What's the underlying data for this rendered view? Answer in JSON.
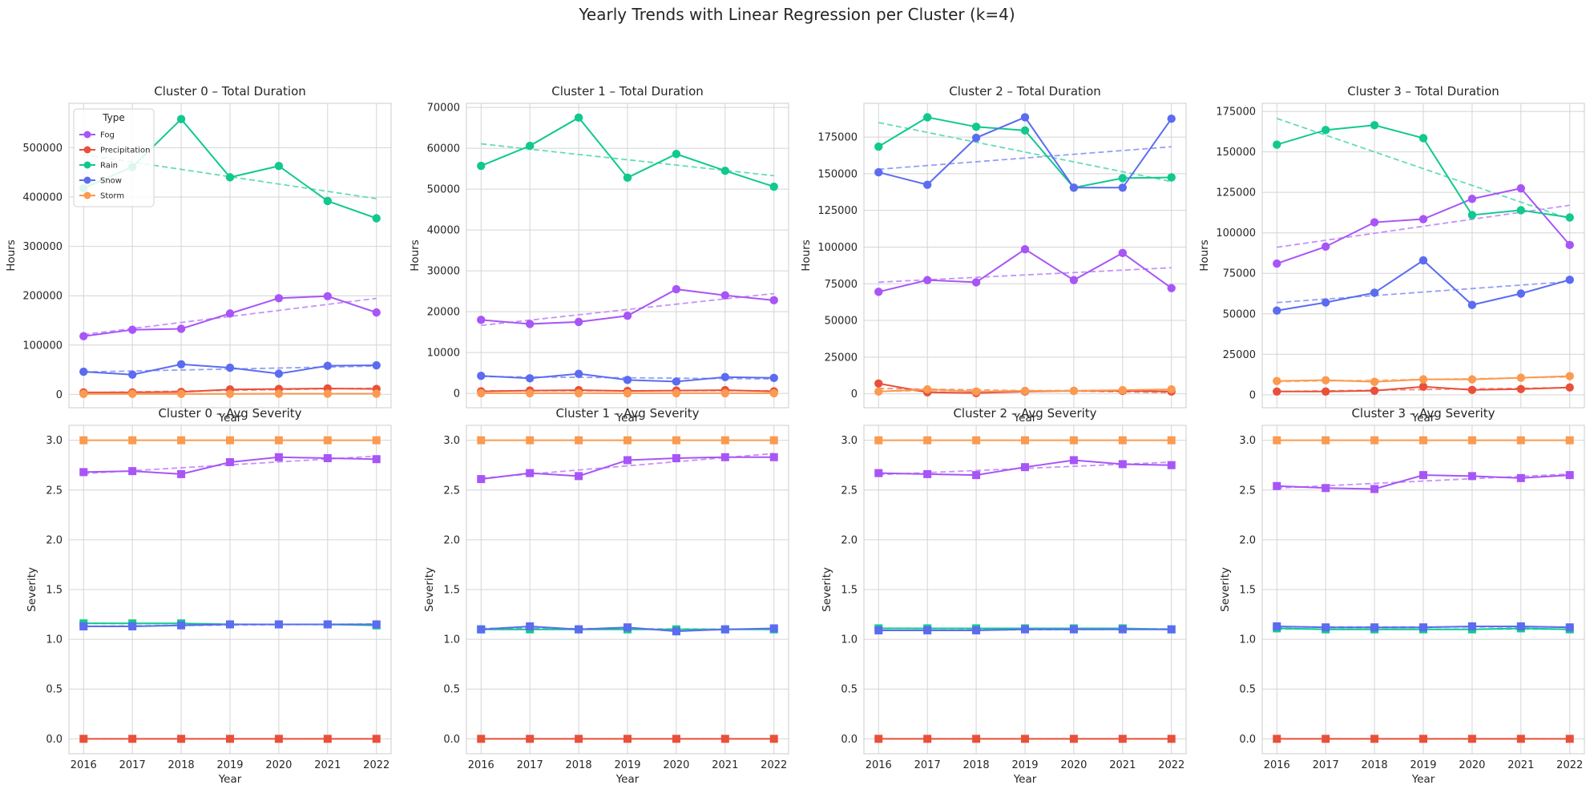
{
  "suptitle": "Yearly Trends with Linear Regression per Cluster (k=4)",
  "legend": {
    "title": "Type",
    "entries": [
      {
        "name": "Fog",
        "color": "#a855f7"
      },
      {
        "name": "Precipitation",
        "color": "#e8503a"
      },
      {
        "name": "Rain",
        "color": "#10c98f"
      },
      {
        "name": "Snow",
        "color": "#5b6cf0"
      },
      {
        "name": "Storm",
        "color": "#fb9a50"
      }
    ]
  },
  "colors": {
    "Fog": "#a855f7",
    "Precipitation": "#e8503a",
    "Rain": "#10c98f",
    "Snow": "#5b6cf0",
    "Storm": "#fb9a50"
  },
  "chart_data": [
    {
      "type": "line",
      "title": "Cluster 0 – Total Duration",
      "xlabel": "Year",
      "ylabel": "Hours",
      "x": [
        2016,
        2017,
        2018,
        2019,
        2020,
        2021,
        2022
      ],
      "ylim": [
        -27000,
        590000
      ],
      "yticks": [
        0,
        100000,
        200000,
        300000,
        400000,
        500000
      ],
      "ytick_labels": [
        "0",
        "100000",
        "200000",
        "300000",
        "400000",
        "500000"
      ],
      "show_xtick_labels": false,
      "marker": "circle",
      "legend": "upper-left",
      "series": [
        {
          "name": "Fog",
          "values": [
            118000,
            131000,
            133000,
            164000,
            195000,
            199000,
            166000
          ]
        },
        {
          "name": "Precipitation",
          "values": [
            4000,
            4000,
            5000,
            10000,
            11000,
            12000,
            11000
          ]
        },
        {
          "name": "Rain",
          "values": [
            418000,
            461000,
            558000,
            440000,
            463000,
            392000,
            357000
          ]
        },
        {
          "name": "Snow",
          "values": [
            46000,
            40000,
            61000,
            54000,
            42000,
            58000,
            59000
          ]
        },
        {
          "name": "Storm",
          "values": [
            1000,
            1000,
            1000,
            1000,
            1500,
            1500,
            1500
          ]
        }
      ]
    },
    {
      "type": "line",
      "title": "Cluster 1 – Total Duration",
      "xlabel": "Year",
      "ylabel": "Hours",
      "x": [
        2016,
        2017,
        2018,
        2019,
        2020,
        2021,
        2022
      ],
      "ylim": [
        -3500,
        71000
      ],
      "yticks": [
        0,
        10000,
        20000,
        30000,
        40000,
        50000,
        60000,
        70000
      ],
      "ytick_labels": [
        "0",
        "10000",
        "20000",
        "30000",
        "40000",
        "50000",
        "60000",
        "70000"
      ],
      "show_xtick_labels": false,
      "marker": "circle",
      "series": [
        {
          "name": "Fog",
          "values": [
            18000,
            17000,
            17500,
            19000,
            25500,
            24000,
            22800
          ]
        },
        {
          "name": "Precipitation",
          "values": [
            500,
            700,
            800,
            600,
            700,
            800,
            500
          ]
        },
        {
          "name": "Rain",
          "values": [
            55700,
            60600,
            67500,
            52800,
            58600,
            54500,
            50600
          ]
        },
        {
          "name": "Snow",
          "values": [
            4300,
            3700,
            4800,
            3300,
            2900,
            4000,
            3800
          ]
        },
        {
          "name": "Storm",
          "values": [
            50,
            50,
            50,
            50,
            50,
            50,
            50
          ]
        }
      ]
    },
    {
      "type": "line",
      "title": "Cluster 2 – Total Duration",
      "xlabel": "Year",
      "ylabel": "Hours",
      "x": [
        2016,
        2017,
        2018,
        2019,
        2020,
        2021,
        2022
      ],
      "ylim": [
        -9500,
        198000
      ],
      "yticks": [
        0,
        25000,
        50000,
        75000,
        100000,
        125000,
        150000,
        175000
      ],
      "ytick_labels": [
        "0",
        "25000",
        "50000",
        "75000",
        "100000",
        "125000",
        "150000",
        "175000"
      ],
      "show_xtick_labels": false,
      "marker": "circle",
      "series": [
        {
          "name": "Fog",
          "values": [
            69500,
            77500,
            76000,
            98500,
            77500,
            96000,
            72000
          ]
        },
        {
          "name": "Precipitation",
          "values": [
            7000,
            1000,
            500,
            1500,
            2000,
            2000,
            1500
          ]
        },
        {
          "name": "Rain",
          "values": [
            168500,
            188500,
            182000,
            179500,
            140500,
            147000,
            147500
          ]
        },
        {
          "name": "Snow",
          "values": [
            151000,
            142500,
            174500,
            188500,
            140500,
            140500,
            187500
          ]
        },
        {
          "name": "Storm",
          "values": [
            1500,
            3000,
            1500,
            2000,
            2000,
            2500,
            3000
          ]
        }
      ]
    },
    {
      "type": "line",
      "title": "Cluster 3 – Total Duration",
      "xlabel": "Year",
      "ylabel": "Hours",
      "x": [
        2016,
        2017,
        2018,
        2019,
        2020,
        2021,
        2022
      ],
      "ylim": [
        -8000,
        180000
      ],
      "yticks": [
        0,
        25000,
        50000,
        75000,
        100000,
        125000,
        150000,
        175000
      ],
      "ytick_labels": [
        "0",
        "25000",
        "50000",
        "75000",
        "100000",
        "125000",
        "150000",
        "175000"
      ],
      "show_xtick_labels": false,
      "marker": "circle",
      "series": [
        {
          "name": "Fog",
          "values": [
            81000,
            91500,
            106500,
            108500,
            121000,
            127500,
            92500
          ]
        },
        {
          "name": "Precipitation",
          "values": [
            2000,
            2000,
            2500,
            5000,
            3000,
            3500,
            4500
          ]
        },
        {
          "name": "Rain",
          "values": [
            154500,
            163500,
            166500,
            158500,
            111000,
            114000,
            109500
          ]
        },
        {
          "name": "Snow",
          "values": [
            52000,
            57000,
            63000,
            83000,
            55500,
            62500,
            71000
          ]
        },
        {
          "name": "Storm",
          "values": [
            8500,
            9000,
            8000,
            9500,
            9500,
            10500,
            11500
          ]
        }
      ]
    },
    {
      "type": "line",
      "title": "Cluster 0 – Avg Severity",
      "xlabel": "Year",
      "ylabel": "Severity",
      "x": [
        2016,
        2017,
        2018,
        2019,
        2020,
        2021,
        2022
      ],
      "ylim": [
        -0.15,
        3.15
      ],
      "yticks": [
        0.0,
        0.5,
        1.0,
        1.5,
        2.0,
        2.5,
        3.0
      ],
      "ytick_labels": [
        "0.0",
        "0.5",
        "1.0",
        "1.5",
        "2.0",
        "2.5",
        "3.0"
      ],
      "show_xtick_labels": true,
      "marker": "square",
      "series": [
        {
          "name": "Fog",
          "values": [
            2.68,
            2.69,
            2.66,
            2.78,
            2.83,
            2.82,
            2.81
          ]
        },
        {
          "name": "Precipitation",
          "values": [
            0,
            0,
            0,
            0,
            0,
            0,
            0
          ]
        },
        {
          "name": "Rain",
          "values": [
            1.16,
            1.16,
            1.16,
            1.15,
            1.15,
            1.15,
            1.14
          ]
        },
        {
          "name": "Snow",
          "values": [
            1.13,
            1.13,
            1.14,
            1.15,
            1.15,
            1.15,
            1.15
          ]
        },
        {
          "name": "Storm",
          "values": [
            3.0,
            3.0,
            3.0,
            3.0,
            3.0,
            3.0,
            3.0
          ]
        }
      ]
    },
    {
      "type": "line",
      "title": "Cluster 1 – Avg Severity",
      "xlabel": "Year",
      "ylabel": "Severity",
      "x": [
        2016,
        2017,
        2018,
        2019,
        2020,
        2021,
        2022
      ],
      "ylim": [
        -0.15,
        3.15
      ],
      "yticks": [
        0.0,
        0.5,
        1.0,
        1.5,
        2.0,
        2.5,
        3.0
      ],
      "ytick_labels": [
        "0.0",
        "0.5",
        "1.0",
        "1.5",
        "2.0",
        "2.5",
        "3.0"
      ],
      "show_xtick_labels": true,
      "marker": "square",
      "series": [
        {
          "name": "Fog",
          "values": [
            2.61,
            2.67,
            2.64,
            2.8,
            2.82,
            2.83,
            2.83
          ]
        },
        {
          "name": "Precipitation",
          "values": [
            0,
            0,
            0,
            0,
            0,
            0,
            0
          ]
        },
        {
          "name": "Rain",
          "values": [
            1.1,
            1.1,
            1.1,
            1.1,
            1.1,
            1.1,
            1.1
          ]
        },
        {
          "name": "Snow",
          "values": [
            1.1,
            1.13,
            1.1,
            1.12,
            1.08,
            1.1,
            1.11
          ]
        },
        {
          "name": "Storm",
          "values": [
            3.0,
            3.0,
            3.0,
            3.0,
            3.0,
            3.0,
            3.0
          ]
        }
      ]
    },
    {
      "type": "line",
      "title": "Cluster 2 – Avg Severity",
      "xlabel": "Year",
      "ylabel": "Severity",
      "x": [
        2016,
        2017,
        2018,
        2019,
        2020,
        2021,
        2022
      ],
      "ylim": [
        -0.15,
        3.15
      ],
      "yticks": [
        0.0,
        0.5,
        1.0,
        1.5,
        2.0,
        2.5,
        3.0
      ],
      "ytick_labels": [
        "0.0",
        "0.5",
        "1.0",
        "1.5",
        "2.0",
        "2.5",
        "3.0"
      ],
      "show_xtick_labels": true,
      "marker": "square",
      "series": [
        {
          "name": "Fog",
          "values": [
            2.67,
            2.66,
            2.65,
            2.73,
            2.8,
            2.76,
            2.75
          ]
        },
        {
          "name": "Precipitation",
          "values": [
            0,
            0,
            0,
            0,
            0,
            0,
            0
          ]
        },
        {
          "name": "Rain",
          "values": [
            1.11,
            1.11,
            1.11,
            1.11,
            1.11,
            1.11,
            1.1
          ]
        },
        {
          "name": "Snow",
          "values": [
            1.09,
            1.09,
            1.09,
            1.1,
            1.1,
            1.1,
            1.1
          ]
        },
        {
          "name": "Storm",
          "values": [
            3.0,
            3.0,
            3.0,
            3.0,
            3.0,
            3.0,
            3.0
          ]
        }
      ]
    },
    {
      "type": "line",
      "title": "Cluster 3 – Avg Severity",
      "xlabel": "Year",
      "ylabel": "Severity",
      "x": [
        2016,
        2017,
        2018,
        2019,
        2020,
        2021,
        2022
      ],
      "ylim": [
        -0.15,
        3.15
      ],
      "yticks": [
        0.0,
        0.5,
        1.0,
        1.5,
        2.0,
        2.5,
        3.0
      ],
      "ytick_labels": [
        "0.0",
        "0.5",
        "1.0",
        "1.5",
        "2.0",
        "2.5",
        "3.0"
      ],
      "show_xtick_labels": true,
      "marker": "square",
      "series": [
        {
          "name": "Fog",
          "values": [
            2.54,
            2.52,
            2.51,
            2.65,
            2.64,
            2.62,
            2.65
          ]
        },
        {
          "name": "Precipitation",
          "values": [
            0,
            0,
            0,
            0,
            0,
            0,
            0
          ]
        },
        {
          "name": "Rain",
          "values": [
            1.11,
            1.1,
            1.1,
            1.1,
            1.1,
            1.11,
            1.1
          ]
        },
        {
          "name": "Snow",
          "values": [
            1.13,
            1.12,
            1.12,
            1.12,
            1.13,
            1.13,
            1.12
          ]
        },
        {
          "name": "Storm",
          "values": [
            3.0,
            3.0,
            3.0,
            3.0,
            3.0,
            3.0,
            3.0
          ]
        }
      ]
    }
  ]
}
